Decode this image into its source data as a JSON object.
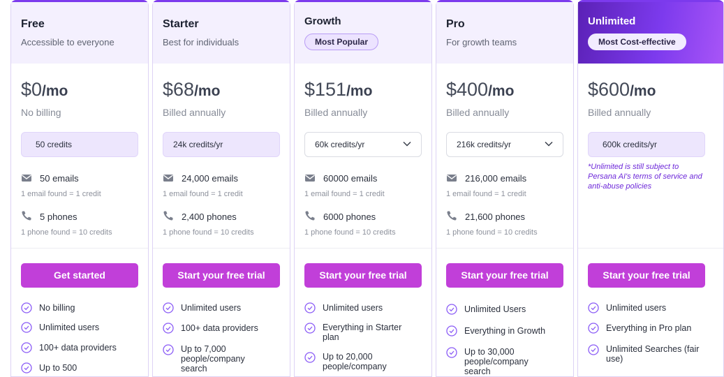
{
  "plans": [
    {
      "name": "Free",
      "tagline": "Accessible to everyone",
      "price": "$0",
      "per": "/mo",
      "billing": "No billing",
      "credits": "50 credits",
      "emails": "50 emails",
      "email_rate": "1 email found = 1 credit",
      "phones": "5 phones",
      "phone_rate": "1 phone found = 10 credits",
      "cta": "Get started",
      "features": [
        "No billing",
        "Unlimited users",
        "100+ data providers",
        "Up to 500"
      ]
    },
    {
      "name": "Starter",
      "tagline": "Best for individuals",
      "price": "$68",
      "per": "/mo",
      "billing": "Billed annually",
      "credits": "24k credits/yr",
      "emails": "24,000 emails",
      "email_rate": "1 email found = 1 credit",
      "phones": "2,400 phones",
      "phone_rate": "1 phone found = 10 credits",
      "cta": "Start your free trial",
      "features": [
        "Unlimited users",
        "100+ data providers",
        "Up to 7,000 people/company search"
      ]
    },
    {
      "name": "Growth",
      "badge": "Most Popular",
      "price": "$151",
      "per": "/mo",
      "billing": "Billed annually",
      "credits": "60k credits/yr",
      "emails": "60000 emails",
      "email_rate": "1 email found = 1 credit",
      "phones": "6000 phones",
      "phone_rate": "1 phone found = 10 credits",
      "cta": "Start your free trial",
      "features": [
        "Unlimited users",
        "Everything in Starter plan",
        "Up to 20,000 people/company"
      ]
    },
    {
      "name": "Pro",
      "tagline": "For growth teams",
      "price": "$400",
      "per": "/mo",
      "billing": "Billed annually",
      "credits": "216k credits/yr",
      "emails": "216,000 emails",
      "email_rate": "1 email found = 1 credit",
      "phones": "21,600 phones",
      "phone_rate": "1 phone found = 10 credits",
      "cta": "Start your free trial",
      "features": [
        "Unlimited Users",
        "Everything in Growth",
        "Up to 30,000 people/company search"
      ]
    },
    {
      "name": "Unlimited",
      "badge": "Most Cost-effective",
      "price": "$600",
      "per": "/mo",
      "billing": "Billed annually",
      "credits": "600k credits/yr",
      "note": "*Unlimited is still subject to Persana AI's terms of service and anti-abuse policies",
      "cta": "Start your free trial",
      "features": [
        "Unlimited users",
        "Everything in Pro plan",
        "Unlimited Searches (fair use)"
      ]
    }
  ],
  "colors": {
    "accent": "#7c3aed",
    "cta": "#c13fd9",
    "header_tint": "#f4f0fe",
    "note": "#6d28d9"
  },
  "icons": {
    "email": "mail-icon",
    "phone": "phone-icon",
    "feature": "check-circle-icon",
    "dropdown": "chevron-down-icon"
  }
}
